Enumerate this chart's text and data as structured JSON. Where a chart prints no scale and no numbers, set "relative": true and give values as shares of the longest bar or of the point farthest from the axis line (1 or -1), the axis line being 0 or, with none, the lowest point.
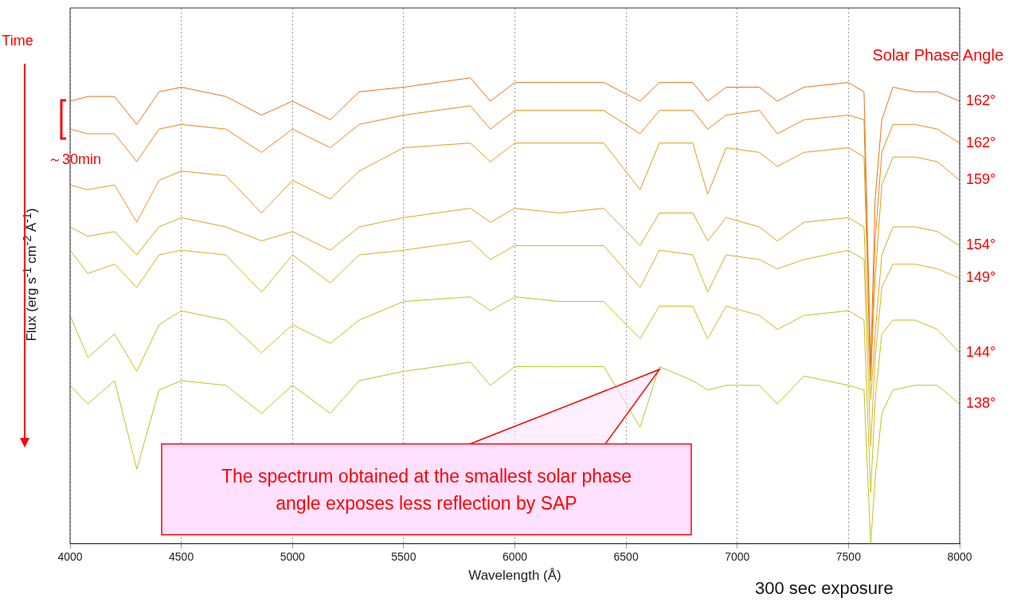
{
  "chart_data": {
    "type": "line",
    "relative": true,
    "xlabel": "Wavelength (Å)",
    "ylabel": "Flux (erg s$^{-1}$ cm$^{-2}$ Å$^{-1}$)",
    "x": [
      4000,
      4080,
      4200,
      4300,
      4400,
      4500,
      4700,
      4861,
      5000,
      5170,
      5300,
      5500,
      5800,
      5890,
      6000,
      6200,
      6400,
      6563,
      6650,
      6800,
      6867,
      6950,
      7100,
      7180,
      7300,
      7500,
      7570,
      7600,
      7620,
      7650,
      7700,
      7800,
      7900,
      8000
    ],
    "xlim": [
      4000,
      8000
    ],
    "xticks": [
      4000,
      4500,
      5000,
      5500,
      6000,
      6500,
      7000,
      7500,
      8000
    ],
    "grid": "x",
    "legend": false,
    "marker": "none",
    "line_style": "solid",
    "series": [
      {
        "name": "162°",
        "color": "#e8731e",
        "values": [
          0.95,
          0.96,
          0.96,
          0.9,
          0.97,
          0.98,
          0.96,
          0.92,
          0.95,
          0.91,
          0.97,
          0.98,
          1.0,
          0.95,
          0.99,
          0.99,
          0.99,
          0.95,
          0.99,
          0.99,
          0.95,
          0.98,
          0.98,
          0.95,
          0.98,
          0.99,
          0.97,
          0.38,
          0.74,
          0.91,
          0.98,
          0.97,
          0.97,
          0.95
        ]
      },
      {
        "name": "162°",
        "color": "#e8881a",
        "values": [
          0.89,
          0.88,
          0.88,
          0.82,
          0.89,
          0.9,
          0.89,
          0.84,
          0.89,
          0.85,
          0.9,
          0.92,
          0.94,
          0.89,
          0.93,
          0.93,
          0.93,
          0.88,
          0.93,
          0.93,
          0.89,
          0.92,
          0.93,
          0.88,
          0.91,
          0.92,
          0.91,
          0.36,
          0.65,
          0.84,
          0.9,
          0.9,
          0.89,
          0.86
        ]
      },
      {
        "name": "159°",
        "color": "#e39a1a",
        "values": [
          0.77,
          0.76,
          0.77,
          0.69,
          0.78,
          0.8,
          0.79,
          0.71,
          0.78,
          0.74,
          0.8,
          0.85,
          0.86,
          0.82,
          0.86,
          0.86,
          0.86,
          0.76,
          0.86,
          0.86,
          0.75,
          0.85,
          0.84,
          0.81,
          0.84,
          0.85,
          0.83,
          0.35,
          0.57,
          0.77,
          0.83,
          0.83,
          0.82,
          0.78
        ]
      },
      {
        "name": "154°",
        "color": "#d8a81a",
        "values": [
          0.68,
          0.66,
          0.67,
          0.62,
          0.68,
          0.7,
          0.68,
          0.65,
          0.67,
          0.63,
          0.68,
          0.7,
          0.72,
          0.69,
          0.72,
          0.71,
          0.72,
          0.64,
          0.71,
          0.71,
          0.65,
          0.7,
          0.68,
          0.65,
          0.69,
          0.7,
          0.68,
          0.31,
          0.45,
          0.62,
          0.68,
          0.68,
          0.67,
          0.64
        ]
      },
      {
        "name": "149°",
        "color": "#d2b41c",
        "values": [
          0.63,
          0.58,
          0.6,
          0.55,
          0.62,
          0.63,
          0.62,
          0.54,
          0.62,
          0.56,
          0.62,
          0.63,
          0.65,
          0.61,
          0.64,
          0.64,
          0.64,
          0.55,
          0.63,
          0.62,
          0.54,
          0.62,
          0.61,
          0.59,
          0.61,
          0.63,
          0.61,
          0.21,
          0.4,
          0.55,
          0.6,
          0.6,
          0.59,
          0.57
        ]
      },
      {
        "name": "144°",
        "color": "#c8be1e",
        "values": [
          0.49,
          0.4,
          0.45,
          0.37,
          0.47,
          0.5,
          0.48,
          0.41,
          0.47,
          0.43,
          0.48,
          0.52,
          0.53,
          0.5,
          0.53,
          0.52,
          0.52,
          0.44,
          0.51,
          0.51,
          0.44,
          0.51,
          0.49,
          0.46,
          0.49,
          0.5,
          0.48,
          0.11,
          0.31,
          0.45,
          0.48,
          0.48,
          0.46,
          0.41
        ]
      },
      {
        "name": "138°",
        "color": "#bcc424",
        "values": [
          0.34,
          0.3,
          0.35,
          0.16,
          0.33,
          0.35,
          0.34,
          0.28,
          0.34,
          0.28,
          0.35,
          0.37,
          0.39,
          0.34,
          0.38,
          0.38,
          0.38,
          0.25,
          0.38,
          0.35,
          0.33,
          0.34,
          0.34,
          0.3,
          0.36,
          0.34,
          0.33,
          0,
          0.14,
          0.28,
          0.33,
          0.34,
          0.34,
          0.3
        ]
      }
    ],
    "annotations": [
      "Time",
      "～30min",
      "Solar Phase Angle",
      {
        "text": "The spectrum obtained at the smallest solar phase angle exposes less reflection by SAP",
        "x": 6650,
        "y": 0.38
      },
      "300 sec exposure"
    ]
  }
}
